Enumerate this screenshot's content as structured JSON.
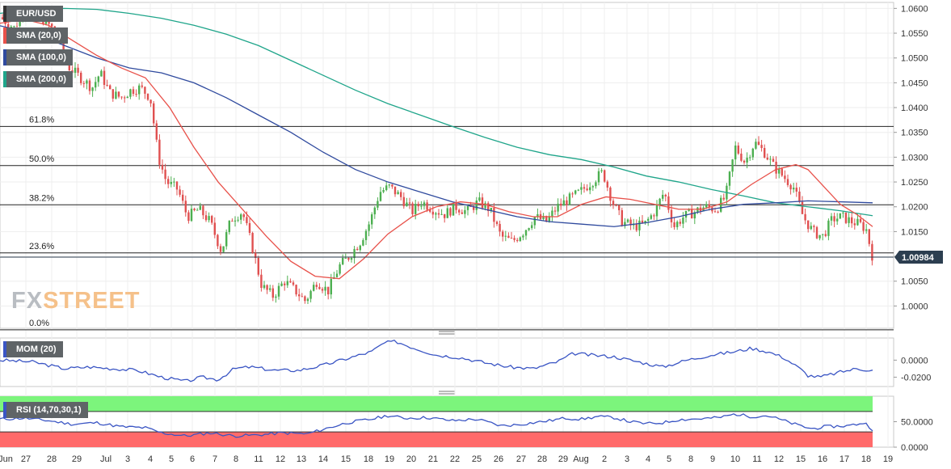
{
  "symbol": "EUR/USD",
  "price_tag": "1.00984",
  "logo": {
    "fx": "FX",
    "street": "STREET"
  },
  "indicators": {
    "sma20": "SMA (20,0)",
    "sma100": "SMA (100,0)",
    "sma200": "SMA (200,0)",
    "mom": "MOM (20)",
    "rsi": "RSI (14,70,30,1)"
  },
  "colors": {
    "up": "#4caf50",
    "down": "#e05050",
    "sma20": "#e8514a",
    "sma100": "#2f4a9e",
    "sma200": "#1fa58a",
    "mom": "#3a55c4",
    "rsi_band_high": "#7cf57c",
    "rsi_band_low": "#ff6a6a",
    "price_tag_bg": "#2c3e50"
  },
  "chart_data": {
    "type": "candlestick",
    "price_axis": {
      "min": 0.9955,
      "max": 1.0612,
      "ticks": [
        "1.0600",
        "1.0550",
        "1.0500",
        "1.0450",
        "1.0400",
        "1.0350",
        "1.0300",
        "1.0250",
        "1.0200",
        "1.0150",
        "1.0100",
        "1.0050",
        "1.0000"
      ]
    },
    "fib_levels": [
      {
        "label": "61.8%",
        "value": 1.0362
      },
      {
        "label": "50.0%",
        "value": 1.0283
      },
      {
        "label": "38.2%",
        "value": 1.0204
      },
      {
        "label": "23.6%",
        "value": 1.0107
      },
      {
        "label": "0.0%",
        "value": 0.9952
      }
    ],
    "current_price": 1.00984,
    "x_labels": [
      "Jun",
      "27",
      "28",
      "29",
      "Jul",
      "3",
      "4",
      "5",
      "6",
      "7",
      "8",
      "11",
      "12",
      "13",
      "14",
      "15",
      "18",
      "19",
      "20",
      "21",
      "22",
      "25",
      "26",
      "27",
      "28",
      "29",
      "Aug",
      "2",
      "3",
      "4",
      "5",
      "8",
      "9",
      "10",
      "11",
      "12",
      "15",
      "16",
      "17",
      "18",
      "19"
    ],
    "close_path": [
      [
        0,
        1.0582
      ],
      [
        18,
        1.056
      ],
      [
        30,
        1.06
      ],
      [
        42,
        1.059
      ],
      [
        56,
        1.0575
      ],
      [
        70,
        1.055
      ],
      [
        86,
        1.048
      ],
      [
        100,
        1.046
      ],
      [
        114,
        1.044
      ],
      [
        124,
        1.047
      ],
      [
        136,
        1.043
      ],
      [
        150,
        1.042
      ],
      [
        162,
        1.0435
      ],
      [
        174,
        1.044
      ],
      [
        186,
        1.042
      ],
      [
        196,
        1.03
      ],
      [
        206,
        1.025
      ],
      [
        220,
        1.0235
      ],
      [
        232,
        1.018
      ],
      [
        246,
        1.0195
      ],
      [
        260,
        1.017
      ],
      [
        274,
        1.011
      ],
      [
        286,
        1.0175
      ],
      [
        300,
        1.019
      ],
      [
        312,
        1.012
      ],
      [
        324,
        1.004
      ],
      [
        338,
        1.002
      ],
      [
        352,
        1.005
      ],
      [
        366,
        1.003
      ],
      [
        378,
        1.001
      ],
      [
        392,
        1.005
      ],
      [
        406,
        1.003
      ],
      [
        420,
        1.008
      ],
      [
        432,
        1.01
      ],
      [
        446,
        1.013
      ],
      [
        458,
        1.017
      ],
      [
        470,
        1.023
      ],
      [
        482,
        1.024
      ],
      [
        496,
        1.022
      ],
      [
        510,
        1.019
      ],
      [
        522,
        1.021
      ],
      [
        536,
        1.0195
      ],
      [
        550,
        1.0185
      ],
      [
        564,
        1.02
      ],
      [
        578,
        1.019
      ],
      [
        592,
        1.021
      ],
      [
        606,
        1.0195
      ],
      [
        620,
        1.014
      ],
      [
        634,
        1.013
      ],
      [
        648,
        1.015
      ],
      [
        662,
        1.018
      ],
      [
        676,
        1.017
      ],
      [
        690,
        1.02
      ],
      [
        704,
        1.0215
      ],
      [
        718,
        1.023
      ],
      [
        732,
        1.025
      ],
      [
        746,
        1.027
      ],
      [
        758,
        1.021
      ],
      [
        770,
        1.017
      ],
      [
        784,
        1.016
      ],
      [
        798,
        1.0165
      ],
      [
        810,
        1.019
      ],
      [
        822,
        1.023
      ],
      [
        834,
        1.016
      ],
      [
        846,
        1.018
      ],
      [
        860,
        1.019
      ],
      [
        872,
        1.02
      ],
      [
        886,
        1.0195
      ],
      [
        898,
        1.022
      ],
      [
        910,
        1.032
      ],
      [
        922,
        1.029
      ],
      [
        934,
        1.033
      ],
      [
        946,
        1.031
      ],
      [
        958,
        1.028
      ],
      [
        970,
        1.026
      ],
      [
        982,
        1.024
      ],
      [
        994,
        1.018
      ],
      [
        1006,
        1.015
      ],
      [
        1018,
        1.014
      ],
      [
        1030,
        1.0175
      ],
      [
        1042,
        1.018
      ],
      [
        1054,
        1.017
      ],
      [
        1064,
        1.0165
      ],
      [
        1072,
        1.0155
      ],
      [
        1080,
        1.0098
      ]
    ],
    "sma20": [
      [
        0,
        1.057
      ],
      [
        30,
        1.0578
      ],
      [
        60,
        1.0566
      ],
      [
        90,
        1.0535
      ],
      [
        120,
        1.0505
      ],
      [
        150,
        1.048
      ],
      [
        180,
        1.046
      ],
      [
        210,
        1.04
      ],
      [
        240,
        1.032
      ],
      [
        270,
        1.025
      ],
      [
        300,
        1.0195
      ],
      [
        330,
        1.014
      ],
      [
        360,
        1.009
      ],
      [
        390,
        1.006
      ],
      [
        420,
        1.0055
      ],
      [
        450,
        1.0095
      ],
      [
        480,
        1.0145
      ],
      [
        510,
        1.018
      ],
      [
        540,
        1.02
      ],
      [
        570,
        1.021
      ],
      [
        600,
        1.0205
      ],
      [
        630,
        1.019
      ],
      [
        660,
        1.018
      ],
      [
        690,
        1.018
      ],
      [
        720,
        1.0205
      ],
      [
        750,
        1.022
      ],
      [
        780,
        1.0215
      ],
      [
        810,
        1.0205
      ],
      [
        840,
        1.0195
      ],
      [
        870,
        1.0195
      ],
      [
        900,
        1.021
      ],
      [
        930,
        1.0245
      ],
      [
        960,
        1.0275
      ],
      [
        985,
        1.0285
      ],
      [
        1000,
        1.0275
      ],
      [
        1020,
        1.024
      ],
      [
        1040,
        1.0205
      ],
      [
        1060,
        1.0185
      ],
      [
        1080,
        1.016
      ]
    ],
    "sma100": [
      [
        0,
        1.0565
      ],
      [
        40,
        1.055
      ],
      [
        80,
        1.0525
      ],
      [
        120,
        1.05
      ],
      [
        160,
        1.048
      ],
      [
        200,
        1.047
      ],
      [
        240,
        1.045
      ],
      [
        280,
        1.042
      ],
      [
        320,
        1.0385
      ],
      [
        360,
        1.035
      ],
      [
        400,
        1.031
      ],
      [
        440,
        1.0275
      ],
      [
        480,
        1.025
      ],
      [
        520,
        1.023
      ],
      [
        560,
        1.021
      ],
      [
        600,
        1.0195
      ],
      [
        640,
        1.018
      ],
      [
        680,
        1.017
      ],
      [
        720,
        1.0165
      ],
      [
        760,
        1.016
      ],
      [
        800,
        1.0168
      ],
      [
        840,
        1.018
      ],
      [
        880,
        1.0195
      ],
      [
        920,
        1.0205
      ],
      [
        960,
        1.0208
      ],
      [
        1000,
        1.0212
      ],
      [
        1040,
        1.021
      ],
      [
        1080,
        1.0208
      ]
    ],
    "sma200": [
      [
        0,
        1.059
      ],
      [
        40,
        1.0598
      ],
      [
        80,
        1.06
      ],
      [
        120,
        1.0598
      ],
      [
        160,
        1.059
      ],
      [
        200,
        1.058
      ],
      [
        240,
        1.0566
      ],
      [
        280,
        1.0548
      ],
      [
        320,
        1.0525
      ],
      [
        360,
        1.0495
      ],
      [
        400,
        1.0465
      ],
      [
        440,
        1.0435
      ],
      [
        480,
        1.0408
      ],
      [
        520,
        1.0385
      ],
      [
        560,
        1.0362
      ],
      [
        600,
        1.034
      ],
      [
        640,
        1.032
      ],
      [
        680,
        1.0305
      ],
      [
        720,
        1.0295
      ],
      [
        760,
        1.028
      ],
      [
        800,
        1.0262
      ],
      [
        840,
        1.025
      ],
      [
        880,
        1.0235
      ],
      [
        920,
        1.0222
      ],
      [
        960,
        1.0208
      ],
      [
        1000,
        1.02
      ],
      [
        1040,
        1.0192
      ],
      [
        1080,
        1.0182
      ]
    ],
    "mom": {
      "ticks": [
        "0.0000",
        "-0.0200"
      ],
      "range": [
        -0.031,
        0.026
      ],
      "points": [
        [
          0,
          0.0
        ],
        [
          40,
          -0.002
        ],
        [
          80,
          -0.01
        ],
        [
          110,
          -0.008
        ],
        [
          140,
          -0.01
        ],
        [
          170,
          -0.012
        ],
        [
          200,
          -0.02
        ],
        [
          230,
          -0.025
        ],
        [
          250,
          -0.02
        ],
        [
          270,
          -0.023
        ],
        [
          290,
          -0.01
        ],
        [
          310,
          -0.008
        ],
        [
          340,
          -0.012
        ],
        [
          370,
          -0.012
        ],
        [
          400,
          -0.006
        ],
        [
          430,
          0.002
        ],
        [
          460,
          0.01
        ],
        [
          475,
          0.02
        ],
        [
          490,
          0.022
        ],
        [
          510,
          0.015
        ],
        [
          540,
          0.006
        ],
        [
          570,
          0.003
        ],
        [
          600,
          -0.003
        ],
        [
          630,
          -0.008
        ],
        [
          660,
          -0.01
        ],
        [
          690,
          -0.002
        ],
        [
          710,
          0.008
        ],
        [
          730,
          0.006
        ],
        [
          760,
          0.004
        ],
        [
          790,
          -0.002
        ],
        [
          820,
          -0.008
        ],
        [
          850,
          0.0
        ],
        [
          880,
          0.006
        ],
        [
          910,
          0.01
        ],
        [
          930,
          0.014
        ],
        [
          950,
          0.01
        ],
        [
          970,
          0.003
        ],
        [
          990,
          -0.01
        ],
        [
          1000,
          -0.018
        ],
        [
          1015,
          -0.02
        ],
        [
          1040,
          -0.014
        ],
        [
          1060,
          -0.01
        ],
        [
          1080,
          -0.012
        ]
      ]
    },
    "rsi": {
      "ticks": [
        "50.0000",
        "0.0000"
      ],
      "range": [
        0,
        100
      ],
      "band_high": 70,
      "band_low": 30,
      "points": [
        [
          0,
          55
        ],
        [
          30,
          57
        ],
        [
          60,
          52
        ],
        [
          90,
          45
        ],
        [
          120,
          48
        ],
        [
          150,
          40
        ],
        [
          180,
          38
        ],
        [
          200,
          28
        ],
        [
          230,
          22
        ],
        [
          260,
          28
        ],
        [
          290,
          22
        ],
        [
          320,
          24
        ],
        [
          350,
          28
        ],
        [
          380,
          26
        ],
        [
          400,
          35
        ],
        [
          430,
          48
        ],
        [
          460,
          55
        ],
        [
          480,
          62
        ],
        [
          500,
          57
        ],
        [
          530,
          58
        ],
        [
          560,
          52
        ],
        [
          590,
          55
        ],
        [
          620,
          42
        ],
        [
          640,
          44
        ],
        [
          660,
          48
        ],
        [
          680,
          52
        ],
        [
          700,
          57
        ],
        [
          720,
          55
        ],
        [
          740,
          60
        ],
        [
          760,
          58
        ],
        [
          780,
          50
        ],
        [
          800,
          46
        ],
        [
          820,
          48
        ],
        [
          840,
          54
        ],
        [
          870,
          56
        ],
        [
          890,
          58
        ],
        [
          910,
          65
        ],
        [
          930,
          60
        ],
        [
          950,
          62
        ],
        [
          970,
          52
        ],
        [
          990,
          42
        ],
        [
          1005,
          36
        ],
        [
          1020,
          40
        ],
        [
          1050,
          42
        ],
        [
          1070,
          48
        ],
        [
          1080,
          35
        ]
      ]
    }
  }
}
